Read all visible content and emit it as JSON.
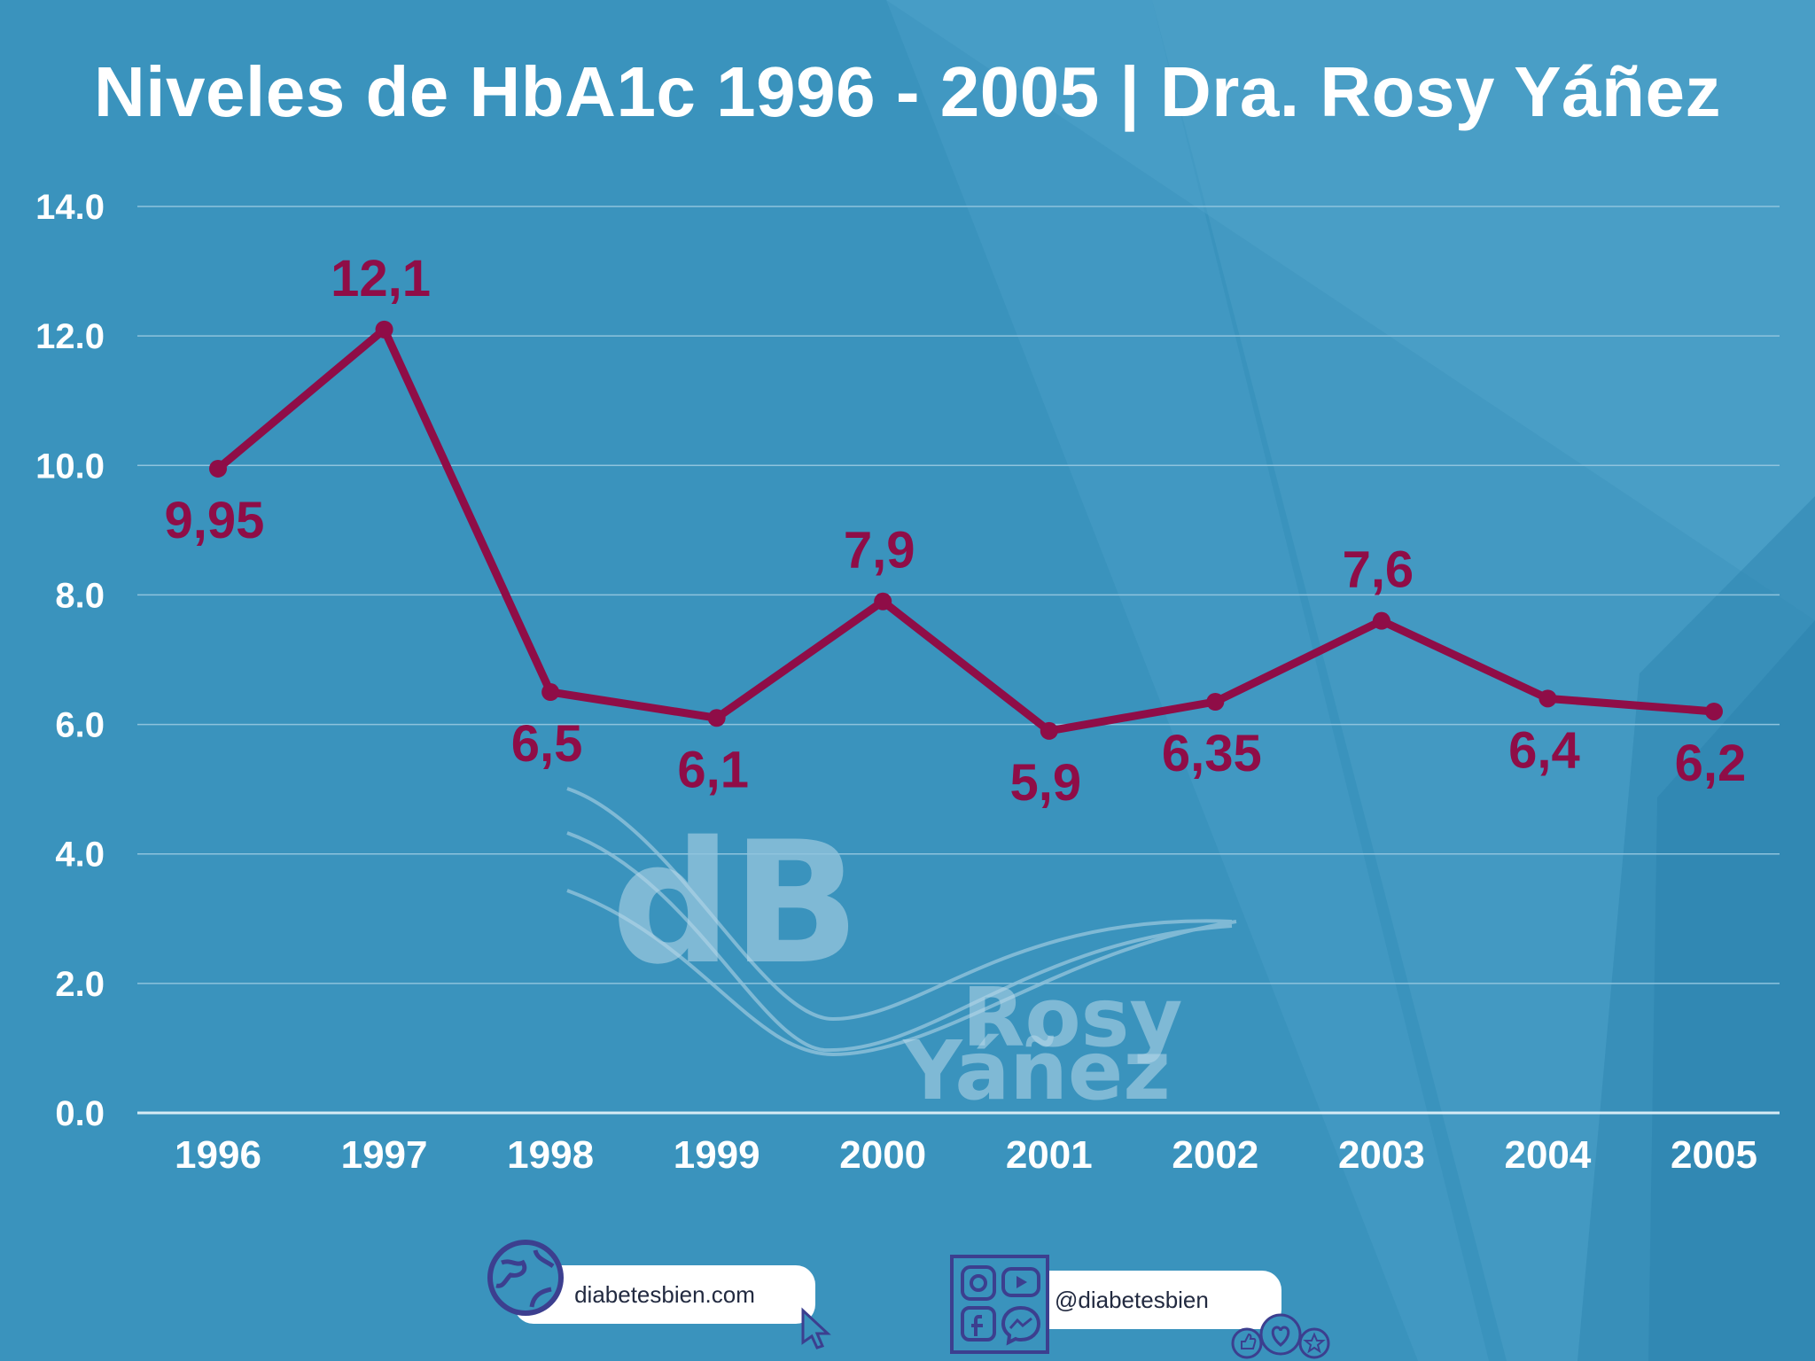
{
  "title": "Niveles de HbA1c 1996 - 2005 | Dra. Rosy Yáñez",
  "colors": {
    "background": "#3a93bd",
    "line": "#8f0d47",
    "text": "#ffffff"
  },
  "chart_data": {
    "type": "line",
    "title": "Niveles de HbA1c 1996 - 2005 | Dra. Rosy Yáñez",
    "xlabel": "",
    "ylabel": "",
    "categories": [
      "1996",
      "1997",
      "1998",
      "1999",
      "2000",
      "2001",
      "2002",
      "2003",
      "2004",
      "2005"
    ],
    "series": [
      {
        "values": [
          9.95,
          12.1,
          6.5,
          6.1,
          7.9,
          5.9,
          6.35,
          7.6,
          6.4,
          6.2
        ],
        "labels": [
          "9,95",
          "12,1",
          "6,5",
          "6,1",
          "7,9",
          "5,9",
          "6,35",
          "7,6",
          "6,4",
          "6,2"
        ]
      }
    ],
    "ylim": [
      0,
      14
    ],
    "yticks": [
      "0.0",
      "2.0",
      "4.0",
      "6.0",
      "8.0",
      "10.0",
      "12.0",
      "14.0"
    ],
    "grid": true,
    "legend": "none"
  },
  "watermark": {
    "logo_text": "dB",
    "name_line1": "Rosy",
    "name_line2": "Yáñez"
  },
  "footer": {
    "website": "diabetesbien.com",
    "social": "@diabetesbien"
  },
  "icons": [
    "globe-icon",
    "cursor-icon",
    "instagram-icon",
    "youtube-icon",
    "facebook-icon",
    "messenger-icon",
    "reactions-icon"
  ]
}
